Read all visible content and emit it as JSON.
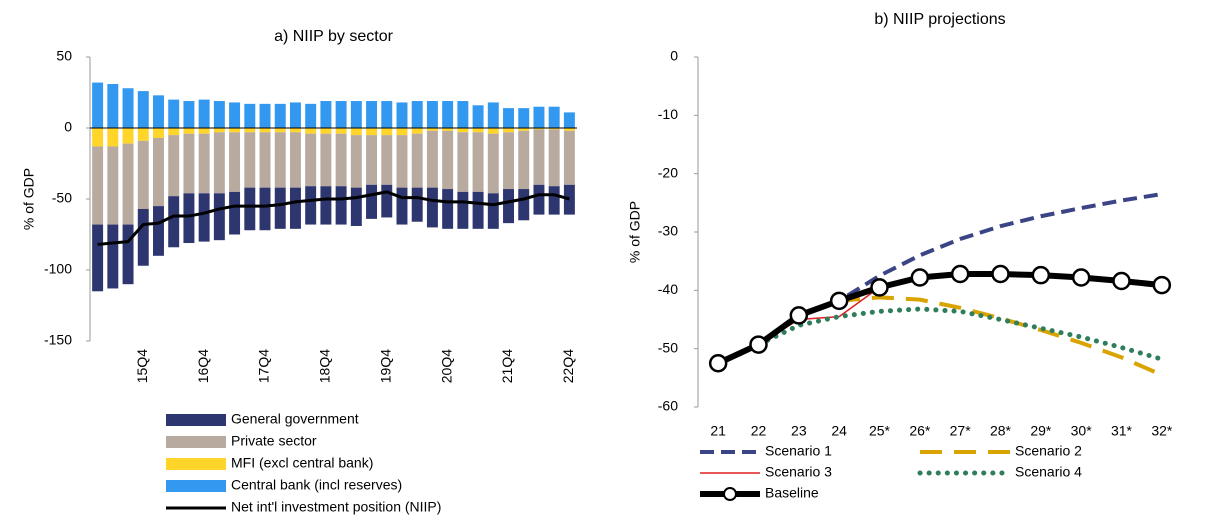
{
  "chart_data": [
    {
      "type": "bar",
      "stacked": true,
      "title": "a) NIIP by sector",
      "y_label": "% of GDP",
      "categories": [
        null,
        null,
        null,
        "15Q4",
        null,
        null,
        null,
        "16Q4",
        null,
        null,
        null,
        "17Q4",
        null,
        null,
        null,
        "18Q4",
        null,
        null,
        null,
        "19Q4",
        null,
        null,
        null,
        "20Q4",
        null,
        null,
        null,
        "21Q4",
        null,
        null,
        null,
        "22Q4"
      ],
      "ylim": [
        -150,
        50
      ],
      "yticks": [
        50,
        0,
        -50,
        -100,
        -150
      ],
      "series": [
        {
          "name": "General government",
          "type": "bar",
          "color": "#2e3670",
          "values": [
            -47,
            -45,
            -42,
            -40,
            -35,
            -36,
            -35,
            -34,
            -33,
            -30,
            -30,
            -30,
            -29,
            -29,
            -27,
            -27,
            -27,
            -27,
            -24,
            -23,
            -26,
            -24,
            -28,
            -28,
            -26,
            -26,
            -25,
            -24,
            -22,
            -21,
            -20,
            -21
          ]
        },
        {
          "name": "Private sector",
          "type": "bar",
          "color": "#b9aaa0",
          "values": [
            -55,
            -55,
            -57,
            -48,
            -48,
            -43,
            -42,
            -42,
            -43,
            -42,
            -39,
            -39,
            -39,
            -39,
            -37,
            -37,
            -37,
            -37,
            -35,
            -35,
            -37,
            -38,
            -40,
            -41,
            -42,
            -42,
            -42,
            -40,
            -41,
            -39,
            -40,
            -38
          ]
        },
        {
          "name": "MFI (excl central bank)",
          "type": "bar",
          "color": "#ffd52a",
          "values": [
            -13,
            -13,
            -11,
            -9,
            -7,
            -5,
            -4,
            -4,
            -3,
            -3,
            -3,
            -3,
            -3,
            -3,
            -4,
            -4,
            -4,
            -5,
            -5,
            -5,
            -5,
            -4,
            -2,
            -2,
            -3,
            -3,
            -4,
            -3,
            -2,
            -1,
            -1,
            -2
          ]
        },
        {
          "name": "Central bank (incl reserves)",
          "type": "bar",
          "color": "#3399f0",
          "values": [
            32,
            31,
            28,
            26,
            23,
            20,
            19,
            20,
            19,
            18,
            17,
            17,
            17,
            18,
            17,
            19,
            19,
            19,
            19,
            19,
            18,
            19,
            19,
            19,
            19,
            16,
            18,
            14,
            14,
            15,
            15,
            11
          ]
        },
        {
          "name": "Net int'l investment position (NIIP)",
          "type": "line",
          "color": "#000000",
          "values": [
            -82,
            -81,
            -80,
            -68,
            -67,
            -62,
            -62,
            -60,
            -57,
            -55,
            -55,
            -55,
            -54,
            -52,
            -51,
            -50,
            -50,
            -49,
            -47,
            -45,
            -49,
            -49,
            -51,
            -52,
            -52,
            -53,
            -54,
            -52,
            -50,
            -47,
            -47,
            -50
          ]
        }
      ]
    },
    {
      "type": "line",
      "title": "b) NIIP projections",
      "y_label": "% of GDP",
      "categories": [
        "21",
        "22",
        "23",
        "24",
        "25*",
        "26*",
        "27*",
        "28*",
        "29*",
        "30*",
        "31*",
        "32*"
      ],
      "ylim": [
        -60,
        0
      ],
      "yticks": [
        0,
        -10,
        -20,
        -30,
        -40,
        -50,
        -60
      ],
      "series": [
        {
          "name": "Scenario 1",
          "color": "#3b4484",
          "dash": "dashed",
          "values": [
            -52.5,
            -49.3,
            -44.3,
            -41.8,
            -37.5,
            -34,
            -31.2,
            -29,
            -27.3,
            -25.9,
            -24.6,
            -23.5
          ]
        },
        {
          "name": "Scenario 2",
          "color": "#d9a400",
          "dash": "long-dashed",
          "values": [
            -52.5,
            -49.3,
            -44.3,
            -41.8,
            -41.2,
            -41.6,
            -43,
            -44.8,
            -46.8,
            -49,
            -51.5,
            -54.5
          ]
        },
        {
          "name": "Scenario 3",
          "color": "#e02020",
          "dash": "solid",
          "values": [
            -52.5,
            -49.3,
            -45,
            -44.5,
            -39.5,
            null,
            null,
            null,
            null,
            null,
            null,
            null
          ]
        },
        {
          "name": "Scenario 4",
          "color": "#2e7d5b",
          "dash": "dotted",
          "values": [
            -52.5,
            -49.3,
            -46,
            -44.5,
            -43.6,
            -43.2,
            -43.6,
            -45,
            -46.5,
            -48,
            -49.8,
            -51.8
          ]
        },
        {
          "name": "Baseline",
          "color": "#000000",
          "dash": "solid",
          "markers": true,
          "values": [
            -52.5,
            -49.3,
            -44.3,
            -41.8,
            -39.5,
            -37.8,
            -37.2,
            -37.2,
            -37.4,
            -37.8,
            -38.4,
            -39.1
          ]
        }
      ]
    }
  ]
}
